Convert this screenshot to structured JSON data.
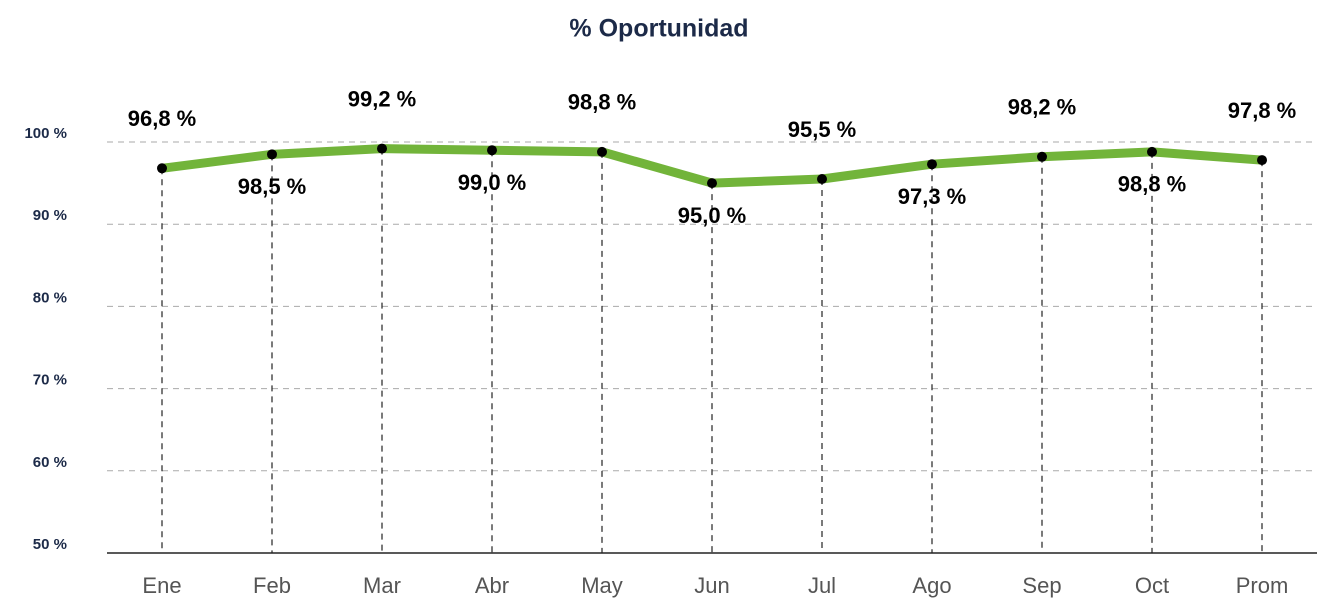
{
  "chart_data": {
    "type": "line",
    "title": "% Oportunidad",
    "categories": [
      "Ene",
      "Feb",
      "Mar",
      "Abr",
      "May",
      "Jun",
      "Jul",
      "Ago",
      "Sep",
      "Oct",
      "Prom"
    ],
    "series": [
      {
        "name": "% Oportunidad",
        "color": "#72b43a",
        "values": [
          96.8,
          98.5,
          99.2,
          99.0,
          98.8,
          95.0,
          95.5,
          97.3,
          98.2,
          98.8,
          97.8
        ],
        "value_labels": [
          "96,8 %",
          "98,5 %",
          "99,2 %",
          "99,0 %",
          "98,8 %",
          "95,0 %",
          "95,5 %",
          "97,3 %",
          "98,2 %",
          "98,8 %",
          "97,8 %"
        ]
      }
    ],
    "ylim": [
      50,
      100
    ],
    "yticks": [
      {
        "value": 50,
        "label": "50 %"
      },
      {
        "value": 60,
        "label": "60 %"
      },
      {
        "value": 70,
        "label": "70 %"
      },
      {
        "value": 80,
        "label": "80 %"
      },
      {
        "value": 90,
        "label": "90 %"
      },
      {
        "value": 100,
        "label": "100 %"
      }
    ],
    "grid": true
  }
}
